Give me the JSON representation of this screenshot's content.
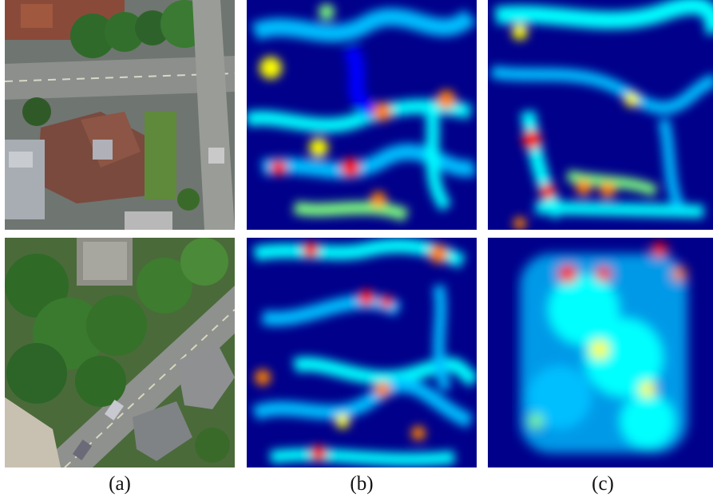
{
  "captions": {
    "a": "(a)",
    "b": "(b)",
    "c": "(c)"
  },
  "rows": [
    {
      "panels": [
        "aerial-photo",
        "heatmap",
        "heatmap"
      ]
    },
    {
      "panels": [
        "aerial-photo",
        "heatmap",
        "heatmap"
      ]
    }
  ],
  "colormap": [
    "#00008b",
    "#0000ff",
    "#00bfff",
    "#00ffff",
    "#7fff7f",
    "#ffff00",
    "#ff8000",
    "#ff0000",
    "#8b0000"
  ]
}
